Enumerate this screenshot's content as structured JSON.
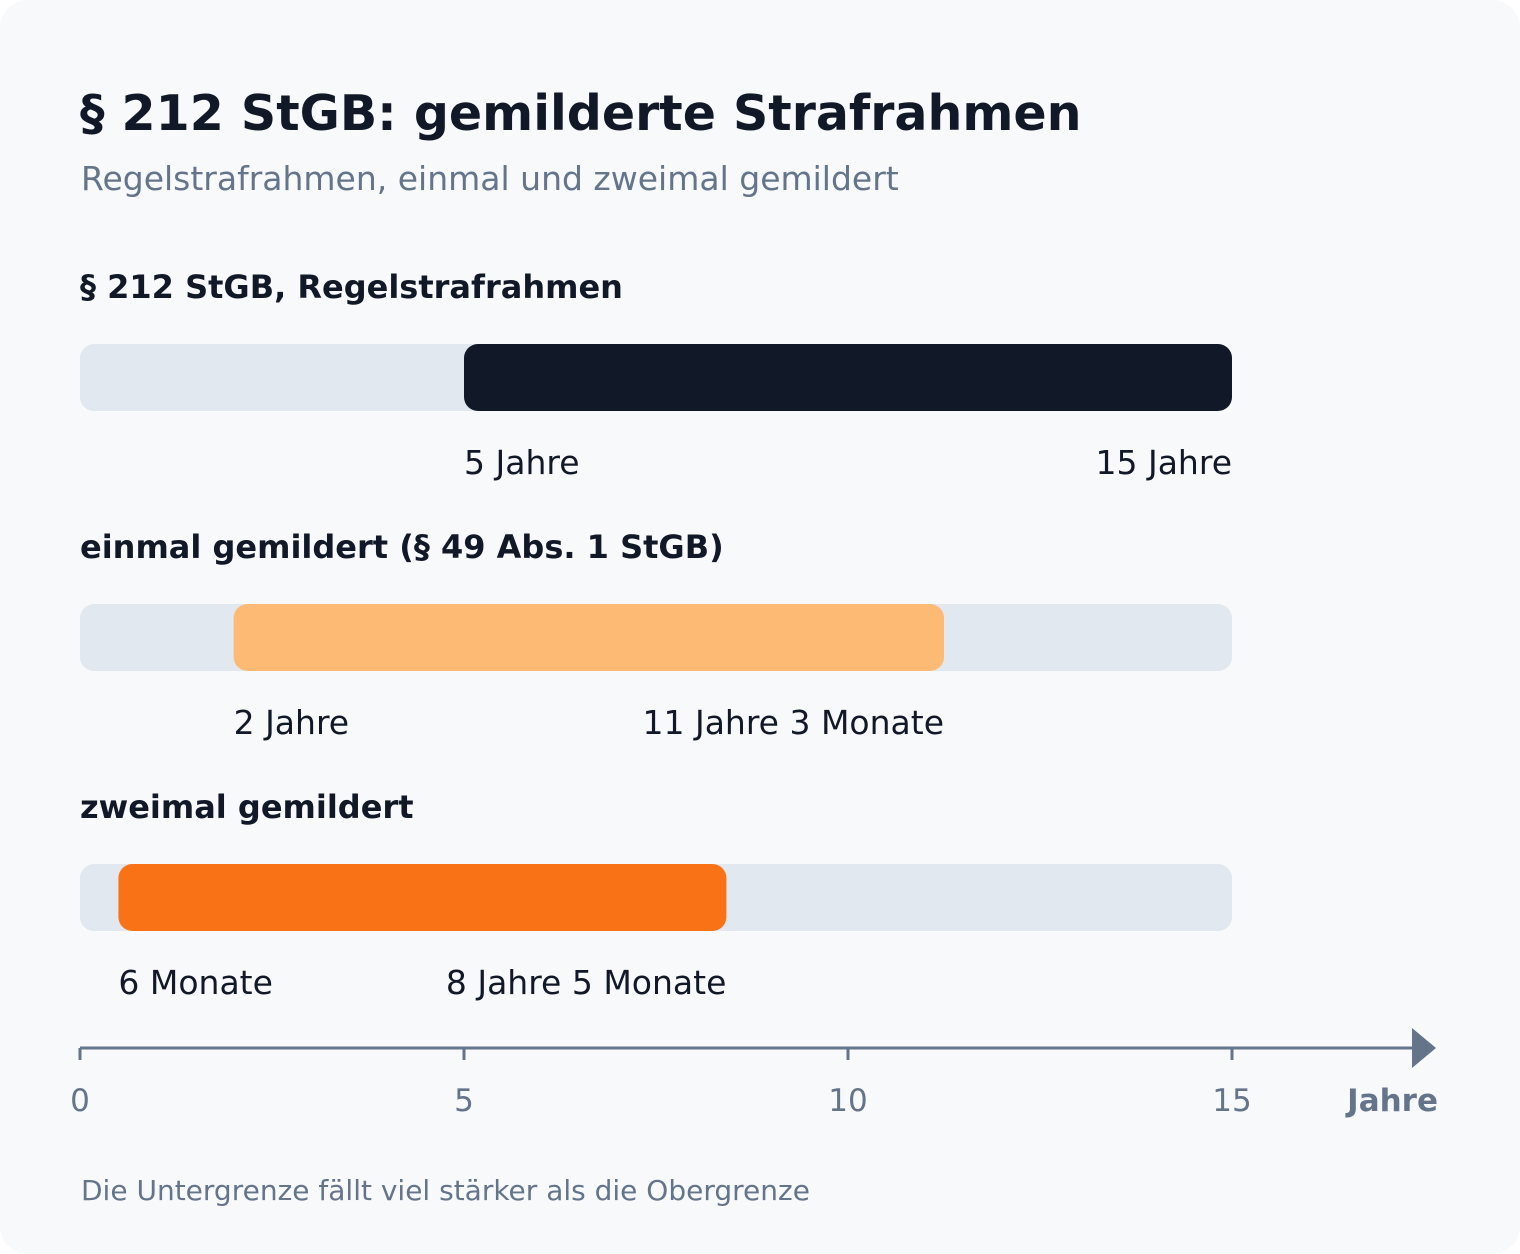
{
  "chart_data": {
    "type": "bar",
    "orientation": "horizontal-range",
    "title": "§ 212 StGB: gemilderte Strafrahmen",
    "subtitle": "Regelstrafrahmen, einmal und zweimal gemildert",
    "xlabel": "Jahre",
    "xlim": [
      0,
      15
    ],
    "xticks": [
      0,
      5,
      10,
      15
    ],
    "rows": [
      {
        "label": "§ 212 StGB, Regelstrafrahmen",
        "min": 5,
        "max": 15,
        "min_label": "5 Jahre",
        "max_label": "15 Jahre",
        "color": "#111827"
      },
      {
        "label": "einmal gemildert (§ 49 Abs. 1 StGB)",
        "min": 2,
        "max": 11.25,
        "min_label": "2 Jahre",
        "max_label": "11 Jahre 3 Monate",
        "color": "#fdba74"
      },
      {
        "label": "zweimal gemildert",
        "min": 0.5,
        "max": 8.4167,
        "min_label": "6 Monate",
        "max_label": "8 Jahre 5 Monate",
        "color": "#f97316"
      }
    ],
    "track_color": "#e2e8f0",
    "axis_color": "#64748b",
    "footnote": "Die Untergrenze fällt viel stärker als die Obergrenze"
  }
}
